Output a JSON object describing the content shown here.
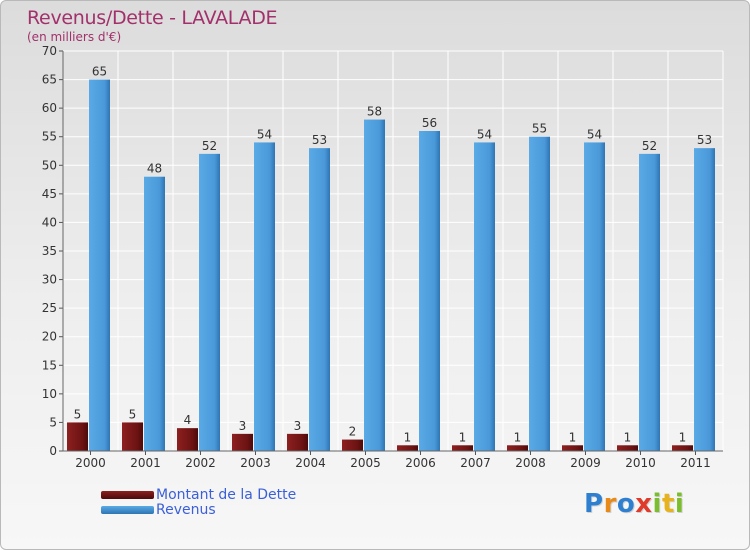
{
  "chart_data": {
    "type": "bar",
    "title": "Revenus/Dette - LAVALADE",
    "subtitle": "(en milliers d'€)",
    "categories": [
      "2000",
      "2001",
      "2002",
      "2003",
      "2004",
      "2005",
      "2006",
      "2007",
      "2008",
      "2009",
      "2010",
      "2011"
    ],
    "series": [
      {
        "name": "Montant de la Dette",
        "color": "#7a1a1a",
        "values": [
          5,
          5,
          4,
          3,
          3,
          2,
          1,
          1,
          1,
          1,
          1,
          1
        ]
      },
      {
        "name": "Revenus",
        "color": "#4f9fdf",
        "values": [
          65,
          48,
          52,
          54,
          53,
          58,
          56,
          54,
          55,
          54,
          52,
          53
        ]
      }
    ],
    "ylim": [
      0,
      70
    ],
    "yticks": [
      0,
      5,
      10,
      15,
      20,
      25,
      30,
      35,
      40,
      45,
      50,
      55,
      60,
      65,
      70
    ],
    "grid": true,
    "legend_position": "bottom-left",
    "xlabel": "",
    "ylabel": ""
  },
  "branding": {
    "logo_letters": [
      "P",
      "r",
      "o",
      "x",
      "i",
      "t",
      "i"
    ],
    "logo_colors": [
      "#2f7fd0",
      "#e88a1a",
      "#2f7fd0",
      "#e03a2a",
      "#7bbd2c",
      "#e8b21a",
      "#7bbd2c"
    ]
  }
}
